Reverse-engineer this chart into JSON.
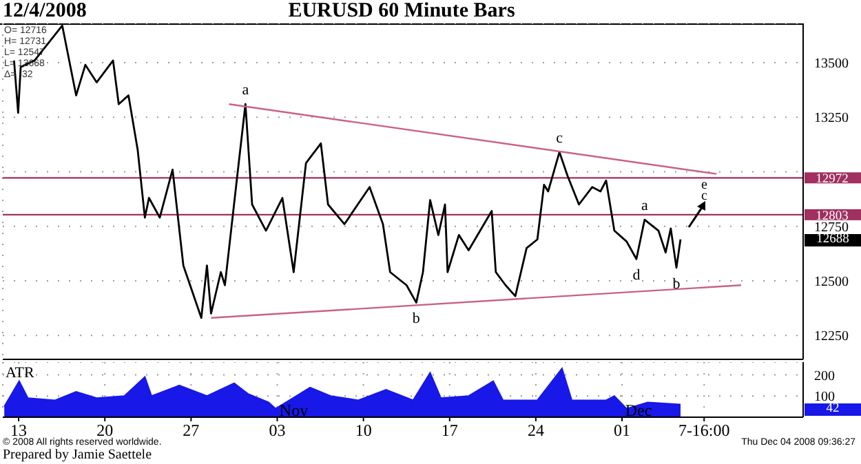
{
  "chart_data": [
    {
      "type": "line",
      "title": "EURUSD 60 Minute Bars",
      "annotations": [
        "12/4/2008",
        "O= 12716",
        "H= 12731",
        "L= 12547",
        "L= 12668",
        "Δ= -32",
        {
          "text": "a",
          "x": "2008-10-31T10:00",
          "y": 13310
        },
        {
          "text": "b",
          "x": "2008-11-14T07:00",
          "y": 12400
        },
        {
          "text": "c",
          "x": "2008-11-25T22:00",
          "y": 13090
        },
        {
          "text": "a",
          "x": "2008-12-02T20:00",
          "y": 12780
        },
        {
          "text": "d",
          "x": "2008-12-02T04:00",
          "y": 12600
        },
        {
          "text": "b",
          "x": "2008-12-05T10:00",
          "y": 12560
        },
        "e",
        "c",
        "12688"
      ],
      "series": [
        {
          "color": "#000000",
          "x": [
            "2008-10-12T15:00",
            "2008-10-12T23:00",
            "2008-10-13T04:00",
            "2008-10-14T07:00",
            "2008-10-16T13:00",
            "2008-10-17T16:00",
            "2008-10-18T10:00",
            "2008-10-19T08:00",
            "2008-10-20T16:00",
            "2008-10-21T03:00",
            "2008-10-21T22:00",
            "2008-10-22T16:00",
            "2008-10-23T06:00",
            "2008-10-23T14:00",
            "2008-10-24T11:00",
            "2008-10-25T12:00",
            "2008-10-26T09:00",
            "2008-10-27T04:00",
            "2008-10-27T20:00",
            "2008-10-28T07:00",
            "2008-10-28T15:00",
            "2008-10-29T10:00",
            "2008-10-29T18:00",
            "2008-10-30T18:00",
            "2008-10-31T10:00",
            "2008-10-31T23:00",
            "2008-11-02T02:00",
            "2008-11-03T10:00",
            "2008-11-04T08:00",
            "2008-11-05T08:00",
            "2008-11-06T13:00",
            "2008-11-07T03:00",
            "2008-11-08T11:00",
            "2008-11-10T12:00",
            "2008-11-11T14:00",
            "2008-11-12T04:00",
            "2008-11-13T12:00",
            "2008-11-14T07:00",
            "2008-11-14T20:00",
            "2008-11-15T10:00",
            "2008-11-16T02:00",
            "2008-11-16T15:00",
            "2008-11-16T20:00",
            "2008-11-17T18:00",
            "2008-11-18T13:00",
            "2008-11-20T10:00",
            "2008-11-20T18:00",
            "2008-11-21T13:00",
            "2008-11-22T08:00",
            "2008-11-23T06:00",
            "2008-11-24T03:00",
            "2008-11-24T16:00",
            "2008-11-25T00:00",
            "2008-11-25T22:00",
            "2008-11-26T14:00",
            "2008-11-27T12:00",
            "2008-11-28T14:00",
            "2008-11-29T06:00",
            "2008-11-29T17:00",
            "2008-11-30T09:00",
            "2008-12-01T09:00",
            "2008-12-02T04:00",
            "2008-12-02T20:00",
            "2008-12-03T23:00",
            "2008-12-04T13:00",
            "2008-12-04T23:00",
            "2008-12-05T10:00",
            "2008-12-05T18:00"
          ],
          "values": [
            13510,
            13270,
            13480,
            13510,
            13670,
            13350,
            13490,
            13410,
            13510,
            13310,
            13350,
            13100,
            12790,
            12880,
            12790,
            13010,
            12570,
            12440,
            12330,
            12570,
            12350,
            12540,
            12480,
            12980,
            13310,
            12850,
            12730,
            12880,
            12540,
            13040,
            13130,
            12850,
            12760,
            12930,
            12760,
            12540,
            12480,
            12400,
            12540,
            12870,
            12710,
            12850,
            12540,
            12710,
            12640,
            12820,
            12540,
            12480,
            12430,
            12650,
            12690,
            12940,
            12910,
            13090,
            12980,
            12850,
            12930,
            12910,
            12960,
            12730,
            12680,
            12600,
            12780,
            12730,
            12630,
            12740,
            12560,
            12690
          ]
        },
        {
          "type": "line",
          "color": "#c8608a",
          "x": [
            "2008-10-30T02:00",
            "2008-12-08T16:00"
          ],
          "values": [
            13310,
            12990
          ]
        },
        {
          "type": "line",
          "color": "#c8608a",
          "x": [
            "2008-10-28T15:00",
            "2008-12-10T16:00"
          ],
          "values": [
            12330,
            12480
          ]
        }
      ],
      "ref_lines": [
        {
          "axis": "y",
          "value": 12972,
          "label": "12972",
          "color": "#a0305f"
        },
        {
          "axis": "y",
          "value": 12803,
          "label": "12803",
          "color": "#a0305f"
        }
      ],
      "xlim": [
        "2008-10-11T17:00",
        "2008-12-15T17:00"
      ],
      "xticks": [
        {
          "value": "2008-10-13",
          "label": null
        },
        {
          "value": "2008-10-20",
          "label": null
        },
        {
          "value": "2008-10-27",
          "label": null
        },
        {
          "value": "2008-11-03",
          "label": null
        },
        {
          "value": "2008-11-10",
          "label": null
        },
        {
          "value": "2008-11-17",
          "label": null
        },
        {
          "value": "2008-11-24",
          "label": null
        },
        {
          "value": "2008-12-01",
          "label": null
        },
        {
          "value": "2008-12-07T16:00",
          "label": null
        }
      ],
      "ylim": [
        12140,
        13680
      ],
      "yticks": [
        12250,
        12500,
        12750,
        {
          "value": 13000,
          "label": null
        },
        13250,
        13500
      ],
      "tick_labels": "y",
      "grid": true
    },
    {
      "type": "area",
      "title": "ATR",
      "annotations": [
        "42",
        {
          "text": "Nov",
          "x": "2008-11-03"
        },
        {
          "text": "Dec",
          "x": "2008-12-01"
        },
        "© 2008 All rights reserved worldwide.",
        "Thu Dec 04 2008 09:36:27",
        "Prepared by Jamie Saettele"
      ],
      "series": [
        {
          "color": "#1818e8",
          "x": [
            "2008-10-11T20:00",
            "2008-10-13T01:00",
            "2008-10-13T18:00",
            "2008-10-15T23:00",
            "2008-10-17T16:00",
            "2008-10-19T08:00",
            "2008-10-21T14:00",
            "2008-10-23T06:00",
            "2008-10-23T19:00",
            "2008-10-26T01:00",
            "2008-10-28T07:00",
            "2008-10-30T12:00",
            "2008-10-31T15:00",
            "2008-11-02T07:00",
            "2008-11-02T21:00",
            "2008-11-05T16:00",
            "2008-11-07T08:00",
            "2008-11-09T14:00",
            "2008-11-11T20:00",
            "2008-11-14T01:00",
            "2008-11-15T10:00",
            "2008-11-16T07:00",
            "2008-11-18T13:00",
            "2008-11-20T13:00",
            "2008-11-21T08:00",
            "2008-11-24T03:00",
            "2008-11-26T03:00",
            "2008-11-26T22:00",
            "2008-11-29T17:00",
            "2008-11-30T09:00",
            "2008-12-01T09:00",
            "2008-12-03T02:00",
            "2008-12-05T18:00"
          ],
          "values": [
            50,
            170,
            90,
            80,
            120,
            90,
            100,
            190,
            100,
            150,
            100,
            160,
            110,
            70,
            40,
            140,
            100,
            80,
            130,
            80,
            210,
            90,
            100,
            170,
            80,
            80,
            230,
            80,
            80,
            100,
            40,
            70,
            60
          ]
        }
      ],
      "xlim": [
        "2008-10-11T17:00",
        "2008-12-15T17:00"
      ],
      "xticks": [
        {
          "value": "2008-10-13",
          "label": "13"
        },
        {
          "value": "2008-10-20",
          "label": "20"
        },
        {
          "value": "2008-10-27",
          "label": "27"
        },
        {
          "value": "2008-11-03",
          "label": "03"
        },
        {
          "value": "2008-11-10",
          "label": "10"
        },
        {
          "value": "2008-11-17",
          "label": "17"
        },
        {
          "value": "2008-11-24",
          "label": "24"
        },
        {
          "value": "2008-12-01",
          "label": "01"
        },
        {
          "value": "2008-12-07T16:00",
          "label": "7-16:00"
        }
      ],
      "ylim": [
        0,
        260
      ],
      "yticks": [
        {
          "value": 0,
          "label": null
        },
        100,
        200
      ],
      "grid": true
    }
  ]
}
